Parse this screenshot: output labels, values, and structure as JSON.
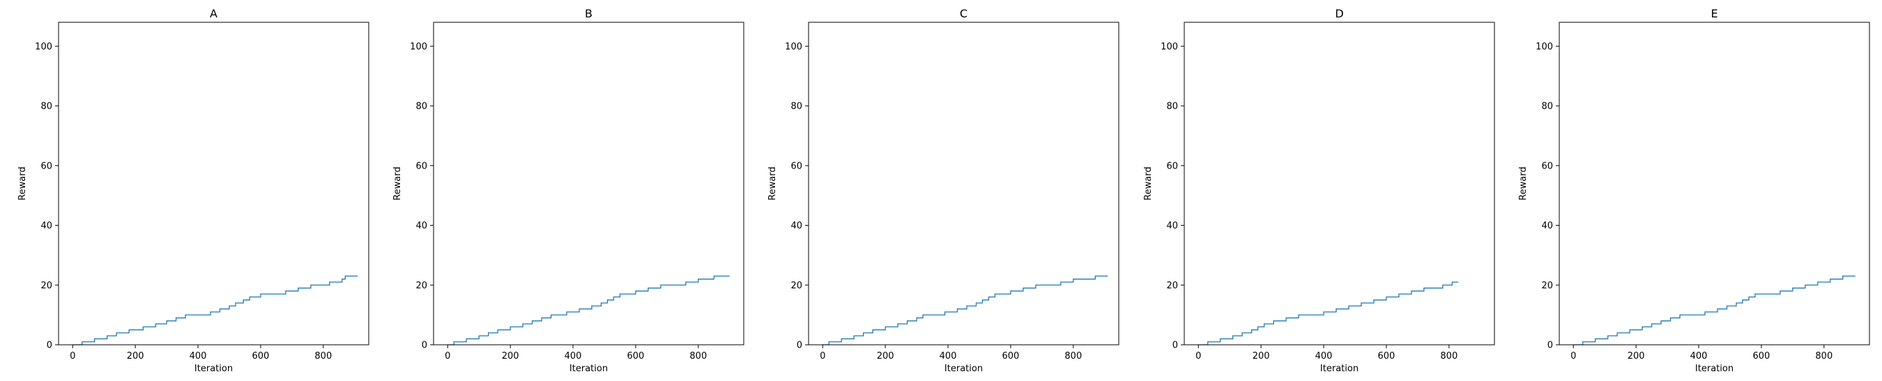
{
  "chart_data": [
    {
      "type": "line",
      "drawstyle": "steps-post",
      "title": "A",
      "xlabel": "Iteration",
      "ylabel": "Reward",
      "xlim": [
        -45,
        945
      ],
      "ylim": [
        0,
        108
      ],
      "xticks": [
        0,
        200,
        400,
        600,
        800
      ],
      "yticks": [
        0,
        20,
        40,
        60,
        80,
        100
      ],
      "grid": false,
      "line_color": "#1f77b4",
      "series": [
        {
          "x": [
            0,
            30,
            70,
            110,
            140,
            180,
            225,
            265,
            300,
            330,
            360,
            400,
            440,
            470,
            500,
            520,
            545,
            565,
            600,
            640,
            680,
            720,
            760,
            800,
            820,
            860,
            870,
            910
          ],
          "y": [
            0,
            1,
            2,
            3,
            4,
            5,
            6,
            7,
            8,
            9,
            10,
            10,
            11,
            12,
            13,
            14,
            15,
            16,
            17,
            17,
            18,
            19,
            20,
            20,
            21,
            22,
            23,
            23
          ]
        }
      ]
    },
    {
      "type": "line",
      "drawstyle": "steps-post",
      "title": "B",
      "xlabel": "Iteration",
      "ylabel": "Reward",
      "xlim": [
        -45,
        945
      ],
      "ylim": [
        0,
        108
      ],
      "xticks": [
        0,
        200,
        400,
        600,
        800
      ],
      "yticks": [
        0,
        20,
        40,
        60,
        80,
        100
      ],
      "grid": false,
      "line_color": "#1f77b4",
      "series": [
        {
          "x": [
            0,
            20,
            60,
            100,
            130,
            160,
            200,
            240,
            270,
            300,
            330,
            350,
            380,
            420,
            460,
            490,
            510,
            530,
            550,
            580,
            600,
            640,
            680,
            720,
            760,
            800,
            820,
            850,
            880,
            900
          ],
          "y": [
            0,
            1,
            2,
            3,
            4,
            5,
            6,
            7,
            8,
            9,
            10,
            10,
            11,
            12,
            13,
            14,
            15,
            16,
            17,
            17,
            18,
            19,
            20,
            20,
            21,
            22,
            22,
            23,
            23,
            23
          ]
        }
      ]
    },
    {
      "type": "line",
      "drawstyle": "steps-post",
      "title": "C",
      "xlabel": "Iteration",
      "ylabel": "Reward",
      "xlim": [
        -45,
        945
      ],
      "ylim": [
        0,
        108
      ],
      "xticks": [
        0,
        200,
        400,
        600,
        800
      ],
      "yticks": [
        0,
        20,
        40,
        60,
        80,
        100
      ],
      "grid": false,
      "line_color": "#1f77b4",
      "series": [
        {
          "x": [
            0,
            20,
            60,
            100,
            130,
            160,
            200,
            240,
            270,
            300,
            320,
            350,
            390,
            430,
            460,
            490,
            510,
            530,
            550,
            570,
            600,
            640,
            680,
            720,
            760,
            800,
            840,
            870,
            910
          ],
          "y": [
            0,
            1,
            2,
            3,
            4,
            5,
            6,
            7,
            8,
            9,
            10,
            10,
            11,
            12,
            13,
            14,
            15,
            16,
            17,
            17,
            18,
            19,
            20,
            20,
            21,
            22,
            22,
            23,
            23
          ]
        }
      ]
    },
    {
      "type": "line",
      "drawstyle": "steps-post",
      "title": "D",
      "xlabel": "Iteration",
      "ylabel": "Reward",
      "xlim": [
        -45,
        945
      ],
      "ylim": [
        0,
        108
      ],
      "xticks": [
        0,
        200,
        400,
        600,
        800
      ],
      "yticks": [
        0,
        20,
        40,
        60,
        80,
        100
      ],
      "grid": false,
      "line_color": "#1f77b4",
      "series": [
        {
          "x": [
            0,
            30,
            70,
            110,
            140,
            170,
            190,
            210,
            240,
            280,
            320,
            360,
            400,
            440,
            480,
            520,
            560,
            600,
            640,
            680,
            720,
            760,
            780,
            810,
            830
          ],
          "y": [
            0,
            1,
            2,
            3,
            4,
            5,
            6,
            7,
            8,
            9,
            10,
            10,
            11,
            12,
            13,
            14,
            15,
            16,
            17,
            18,
            19,
            19,
            20,
            21,
            21
          ]
        }
      ]
    },
    {
      "type": "line",
      "drawstyle": "steps-post",
      "title": "E",
      "xlabel": "Iteration",
      "ylabel": "Reward",
      "xlim": [
        -45,
        945
      ],
      "ylim": [
        0,
        108
      ],
      "xticks": [
        0,
        200,
        400,
        600,
        800
      ],
      "yticks": [
        0,
        20,
        40,
        60,
        80,
        100
      ],
      "grid": false,
      "line_color": "#1f77b4",
      "series": [
        {
          "x": [
            0,
            30,
            70,
            110,
            140,
            180,
            220,
            250,
            280,
            310,
            340,
            380,
            420,
            460,
            490,
            520,
            540,
            560,
            580,
            620,
            660,
            700,
            740,
            780,
            820,
            860,
            900
          ],
          "y": [
            0,
            1,
            2,
            3,
            4,
            5,
            6,
            7,
            8,
            9,
            10,
            10,
            11,
            12,
            13,
            14,
            15,
            16,
            17,
            17,
            18,
            19,
            20,
            21,
            22,
            23,
            23
          ]
        }
      ]
    }
  ]
}
